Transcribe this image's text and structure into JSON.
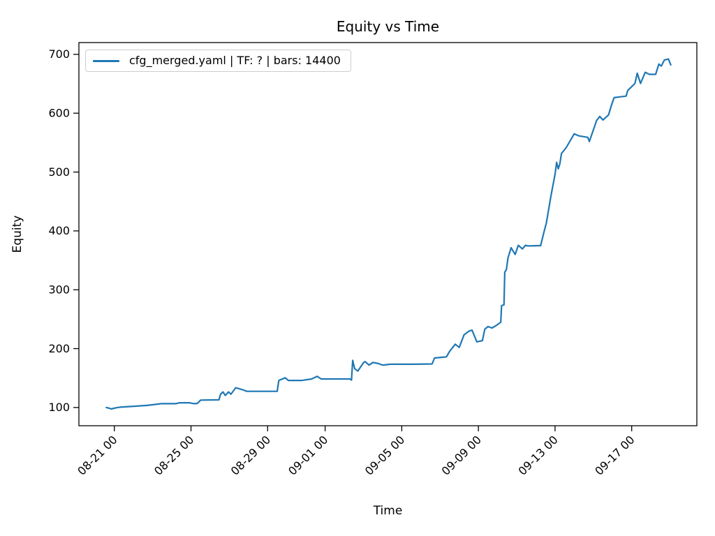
{
  "figure": {
    "background": "#ffffff",
    "title": "Equity vs Time",
    "xlabel": "Time",
    "ylabel": "Equity"
  },
  "legend": {
    "label": "cfg_merged.yaml | TF: ? | bars: 14400",
    "line_color": "#1f77b4"
  },
  "chart_data": {
    "type": "line",
    "title": "Equity vs Time",
    "xlabel": "Time",
    "ylabel": "Equity",
    "legend_position": "upper left",
    "grid": false,
    "series": [
      {
        "name": "cfg_merged.yaml | TF: ? | bars: 14400",
        "color": "#1f77b4",
        "line_width": 2.2,
        "points": [
          [
            "08-20 14:00",
            100
          ],
          [
            "08-20 17:00",
            99
          ],
          [
            "08-20 20:00",
            97.5
          ],
          [
            "08-21 02:00",
            99.5
          ],
          [
            "08-21 07:00",
            100.5
          ],
          [
            "08-21 18:00",
            101.5
          ],
          [
            "08-22 17:00",
            103.5
          ],
          [
            "08-23 11:00",
            106.5
          ],
          [
            "08-24 05:00",
            106.5
          ],
          [
            "08-24 10:00",
            108
          ],
          [
            "08-24 22:00",
            108
          ],
          [
            "08-25 04:00",
            106.5
          ],
          [
            "08-25 08:00",
            107
          ],
          [
            "08-25 12:00",
            112.5
          ],
          [
            "08-26 11:00",
            113
          ],
          [
            "08-26 13:00",
            122.5
          ],
          [
            "08-26 16:00",
            126.5
          ],
          [
            "08-26 19:00",
            120.5
          ],
          [
            "08-26 23:00",
            126.5
          ],
          [
            "08-27 02:00",
            122.5
          ],
          [
            "08-27 08:00",
            133.5
          ],
          [
            "08-27 17:00",
            130
          ],
          [
            "08-27 22:00",
            127.5
          ],
          [
            "08-29 12:00",
            127.5
          ],
          [
            "08-29 14:00",
            146
          ],
          [
            "08-29 22:00",
            150.5
          ],
          [
            "08-30 02:00",
            146
          ],
          [
            "08-30 19:00",
            146
          ],
          [
            "08-31 07:00",
            148.5
          ],
          [
            "08-31 14:00",
            153
          ],
          [
            "08-31 19:00",
            148.5
          ],
          [
            "09-02 07:00",
            148.5
          ],
          [
            "09-02 09:00",
            146.5
          ],
          [
            "09-02 10:30",
            180
          ],
          [
            "09-02 13:00",
            166
          ],
          [
            "09-02 17:00",
            162
          ],
          [
            "09-03 00:00",
            176
          ],
          [
            "09-03 02:00",
            178
          ],
          [
            "09-03 07:00",
            172
          ],
          [
            "09-03 12:00",
            176.5
          ],
          [
            "09-03 19:00",
            174.5
          ],
          [
            "09-04 00:00",
            172
          ],
          [
            "09-04 10:00",
            173.5
          ],
          [
            "09-05 12:00",
            173.5
          ],
          [
            "09-06 14:00",
            174
          ],
          [
            "09-06 17:00",
            184
          ],
          [
            "09-07 08:00",
            186
          ],
          [
            "09-07 12:00",
            195.5
          ],
          [
            "09-07 19:00",
            207.5
          ],
          [
            "09-08 00:00",
            202
          ],
          [
            "09-08 06:00",
            223.5
          ],
          [
            "09-08 12:00",
            229.5
          ],
          [
            "09-08 16:00",
            231.5
          ],
          [
            "09-08 22:00",
            211.5
          ],
          [
            "09-09 05:00",
            213.5
          ],
          [
            "09-09 08:00",
            233
          ],
          [
            "09-09 12:00",
            237.5
          ],
          [
            "09-09 17:00",
            235
          ],
          [
            "09-09 22:00",
            239
          ],
          [
            "09-10 04:00",
            245
          ],
          [
            "09-10 05:00",
            273
          ],
          [
            "09-10 08:00",
            274.5
          ],
          [
            "09-10 09:00",
            330
          ],
          [
            "09-10 11:00",
            334
          ],
          [
            "09-10 13:00",
            354
          ],
          [
            "09-10 17:00",
            371.5
          ],
          [
            "09-10 22:00",
            360
          ],
          [
            "09-11 02:00",
            375.5
          ],
          [
            "09-11 07:00",
            369.5
          ],
          [
            "09-11 11:00",
            375.5
          ],
          [
            "09-11 14:00",
            374.5
          ],
          [
            "09-12 06:00",
            375
          ],
          [
            "09-12 10:00",
            397.5
          ],
          [
            "09-12 13:00",
            413
          ],
          [
            "09-12 19:00",
            460.5
          ],
          [
            "09-13 00:00",
            496
          ],
          [
            "09-13 02:00",
            516.5
          ],
          [
            "09-13 04:00",
            505.5
          ],
          [
            "09-13 06:00",
            514
          ],
          [
            "09-13 08:00",
            531.5
          ],
          [
            "09-13 14:00",
            541.5
          ],
          [
            "09-14 00:00",
            565
          ],
          [
            "09-14 06:00",
            561.5
          ],
          [
            "09-14 17:00",
            559
          ],
          [
            "09-14 19:00",
            552
          ],
          [
            "09-15 04:00",
            587.5
          ],
          [
            "09-15 08:00",
            594.5
          ],
          [
            "09-15 12:00",
            588.5
          ],
          [
            "09-15 19:00",
            597
          ],
          [
            "09-15 23:00",
            615
          ],
          [
            "09-16 02:00",
            626.5
          ],
          [
            "09-16 17:00",
            629
          ],
          [
            "09-16 19:00",
            638.5
          ],
          [
            "09-17 04:00",
            650.5
          ],
          [
            "09-17 07:00",
            668
          ],
          [
            "09-17 11:00",
            650.5
          ],
          [
            "09-17 17:00",
            669.5
          ],
          [
            "09-17 22:00",
            666
          ],
          [
            "09-18 06:00",
            666
          ],
          [
            "09-18 10:00",
            683.5
          ],
          [
            "09-18 13:00",
            680
          ],
          [
            "09-18 17:00",
            690.5
          ],
          [
            "09-18 22:00",
            692
          ],
          [
            "09-19 01:00",
            682
          ]
        ]
      }
    ],
    "axes": {
      "x_tick_labels": [
        "08-21 00",
        "08-25 00",
        "08-29 00",
        "09-01 00",
        "09-05 00",
        "09-09 00",
        "09-13 00",
        "09-17 00"
      ],
      "x_tick_rotation_deg": 45,
      "y_ticks": [
        100,
        200,
        300,
        400,
        500,
        600,
        700
      ],
      "xlim_days_from_0821": [
        -1.85,
        30.4
      ],
      "ylim": [
        69,
        720
      ],
      "axis_color": "#000000",
      "tick_label_fontsize": 15
    }
  }
}
